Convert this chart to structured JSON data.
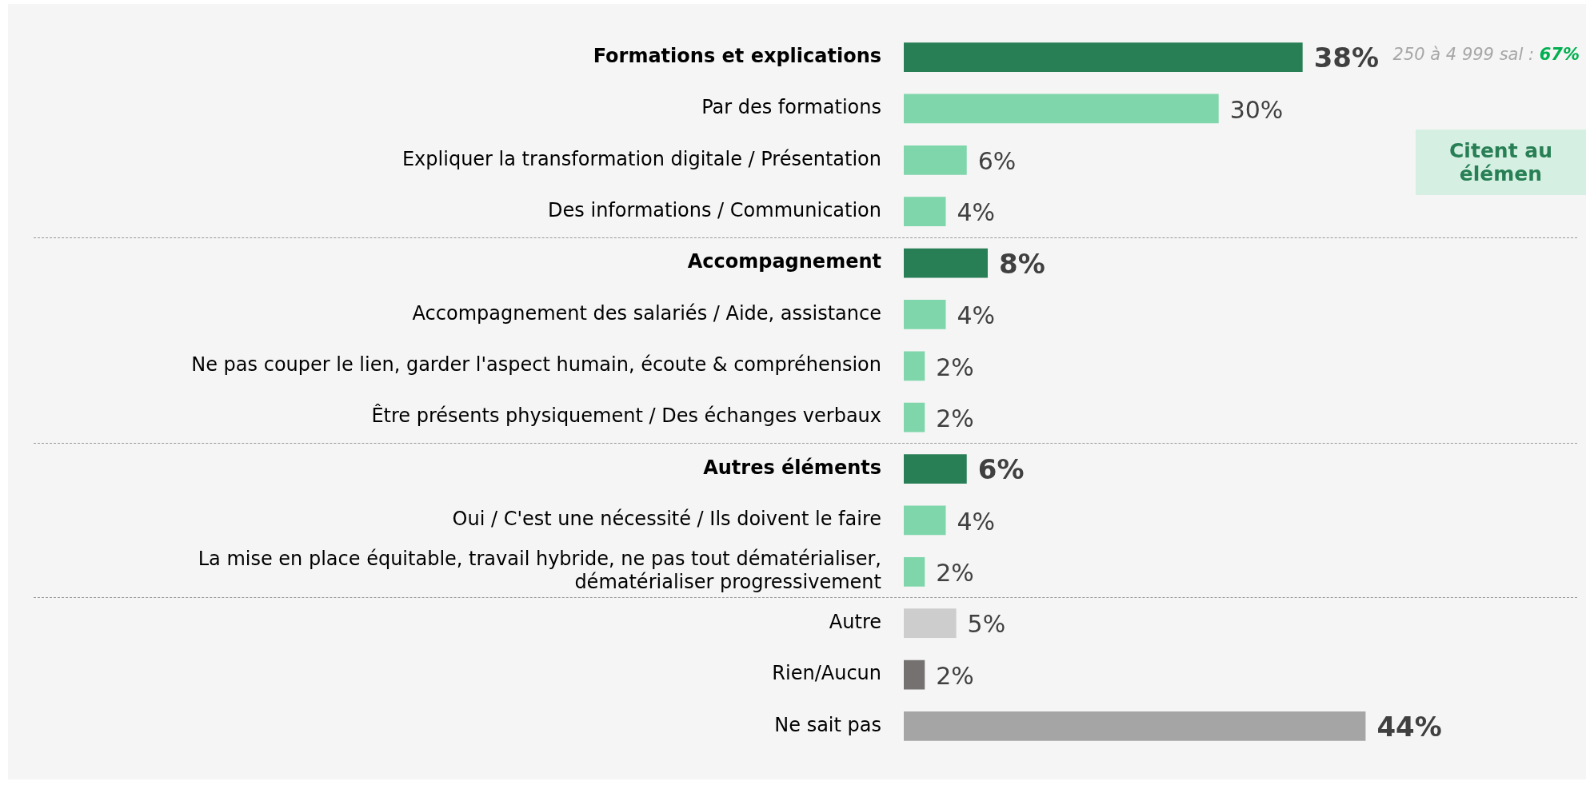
{
  "chart_data": {
    "type": "bar",
    "orientation": "horizontal",
    "categories": [
      "Formations et explications",
      "Par des formations",
      "Expliquer la transformation digitale / Présentation",
      "Des informations / Communication",
      "Accompagnement",
      "Accompagnement des salariés / Aide, assistance",
      "Ne pas couper le lien, garder l'aspect humain, écoute & compréhension",
      "Être présents physiquement / Des échanges verbaux",
      "Autres éléments",
      "Oui / C'est une nécessité / Ils doivent le faire",
      "La mise en place équitable, travail hybride, ne pas tout dématérialiser,\ndématérialiser progressivement",
      "Autre",
      "Rien/Aucun",
      "Ne sait pas"
    ],
    "values": [
      38,
      30,
      6,
      4,
      8,
      4,
      2,
      2,
      6,
      4,
      2,
      5,
      2,
      44
    ],
    "value_labels": [
      "38%",
      "30%",
      "6%",
      "4%",
      "8%",
      "4%",
      "2%",
      "2%",
      "6%",
      "4%",
      "2%",
      "5%",
      "2%",
      "44%"
    ],
    "colors": [
      "#287f55",
      "#7ed6aa",
      "#7ed6aa",
      "#7ed6aa",
      "#287f55",
      "#7ed6aa",
      "#7ed6aa",
      "#7ed6aa",
      "#287f55",
      "#7ed6aa",
      "#7ed6aa",
      "#cdcdcd",
      "#767171",
      "#a5a5a5"
    ],
    "xlim": [
      0,
      65
    ],
    "tick_labels": "y",
    "legend": false,
    "annotations": [
      "250 à 4 999 sal : 67%",
      "Citent au\nélémen"
    ]
  }
}
